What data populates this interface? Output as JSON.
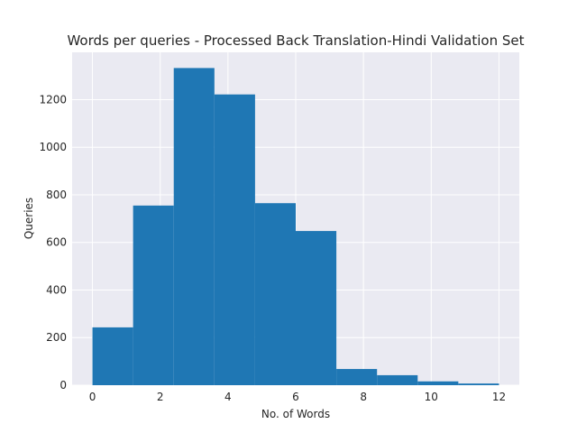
{
  "chart_data": {
    "type": "bar",
    "title": "Words per queries - Processed Back Translation-Hindi Validation Set",
    "xlabel": "No. of Words",
    "ylabel": "Queries",
    "bin_edges": [
      0,
      1.2,
      2.4,
      3.6,
      4.8,
      6.0,
      7.2,
      8.4,
      9.6,
      10.8,
      12.0
    ],
    "values": [
      243,
      755,
      1333,
      1222,
      765,
      648,
      68,
      42,
      16,
      7
    ],
    "xlim": [
      -0.6,
      12.6
    ],
    "ylim": [
      0,
      1399
    ],
    "xticks": [
      0,
      2,
      4,
      6,
      8,
      10,
      12
    ],
    "yticks": [
      0,
      200,
      400,
      600,
      800,
      1000,
      1200
    ],
    "bar_color": "#1f77b4",
    "background_color": "#eaeaf2",
    "grid_color": "#ffffff",
    "grid": true
  }
}
